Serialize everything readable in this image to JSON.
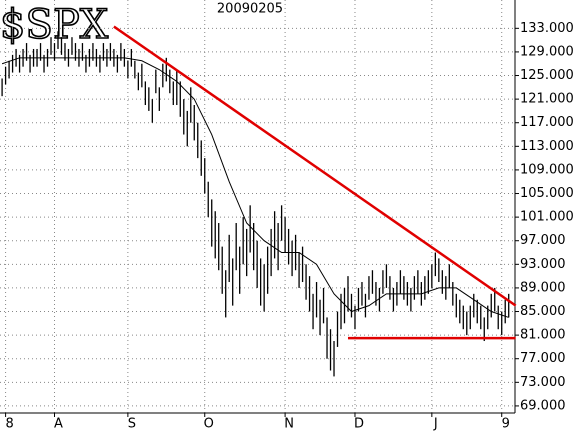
{
  "chart_data": {
    "type": "ohlc",
    "title": "$SPX",
    "subtitle": "20090205",
    "xlim": [
      -0.6,
      146.8
    ],
    "xticks": [
      {
        "value": 1,
        "label": "8"
      },
      {
        "value": 15,
        "label": "A"
      },
      {
        "value": 36,
        "label": "S"
      },
      {
        "value": 58,
        "label": "O"
      },
      {
        "value": 81,
        "label": "N"
      },
      {
        "value": 101,
        "label": "D"
      },
      {
        "value": 123,
        "label": "J"
      },
      {
        "value": 143,
        "label": "9"
      }
    ],
    "ylim": [
      67.8,
      137.8
    ],
    "yticks": [
      {
        "value": 69,
        "label": "69.000"
      },
      {
        "value": 73,
        "label": "73.000"
      },
      {
        "value": 77,
        "label": "77.000"
      },
      {
        "value": 81,
        "label": "81.000"
      },
      {
        "value": 85,
        "label": "85.000"
      },
      {
        "value": 89,
        "label": "89.000"
      },
      {
        "value": 93,
        "label": "93.000"
      },
      {
        "value": 97,
        "label": "97.000"
      },
      {
        "value": 101,
        "label": "101.000"
      },
      {
        "value": 105,
        "label": "105.000"
      },
      {
        "value": 109,
        "label": "109.000"
      },
      {
        "value": 113,
        "label": "113.000"
      },
      {
        "value": 117,
        "label": "117.000"
      },
      {
        "value": 121,
        "label": "121.000"
      },
      {
        "value": 125,
        "label": "125.000"
      },
      {
        "value": 129,
        "label": "129.000"
      },
      {
        "value": 133,
        "label": "133.000"
      }
    ],
    "grid": true,
    "color": "#000000",
    "high": [
      124.5,
      126.5,
      127.5,
      128.5,
      129.5,
      128.5,
      129.5,
      130.5,
      128.5,
      129.5,
      129.5,
      130.5,
      128.5,
      129.5,
      131.5,
      130.5,
      132.5,
      131.5,
      130.5,
      129.5,
      131.5,
      130.5,
      129.5,
      130.5,
      128.5,
      129.5,
      130.5,
      129.5,
      128.5,
      130.5,
      129.5,
      130.5,
      129.5,
      128.5,
      130.5,
      129.5,
      127.5,
      129.5,
      127.5,
      125.5,
      127,
      124,
      123,
      121,
      126,
      123,
      127,
      128,
      126,
      124,
      126,
      124,
      121,
      119,
      123,
      120,
      117,
      114,
      111,
      107,
      104,
      102,
      100,
      96,
      92,
      98,
      94,
      100,
      96,
      101,
      99,
      103,
      100,
      97,
      94,
      93,
      96,
      99,
      102,
      100,
      103,
      101,
      99,
      97,
      98,
      95,
      96,
      93,
      91,
      88,
      90,
      87,
      89,
      84,
      82,
      80,
      85,
      88,
      89,
      91,
      88,
      86,
      89,
      90,
      88,
      91,
      92,
      90,
      89,
      92,
      93,
      91,
      89,
      90,
      92,
      91,
      90,
      89,
      91,
      92,
      90,
      91,
      92,
      93,
      95,
      94,
      92,
      91,
      93,
      90,
      88,
      87,
      86,
      85,
      86,
      88,
      87,
      86,
      84,
      86,
      88,
      89,
      86,
      85,
      87,
      88
    ],
    "low": [
      121.5,
      123.5,
      124.5,
      125.5,
      126.5,
      125.5,
      126.5,
      127.5,
      125.5,
      126.5,
      126.5,
      127.5,
      125.5,
      126.5,
      128.5,
      127.5,
      129.5,
      128.5,
      127.5,
      126.5,
      128.5,
      127.5,
      126.5,
      127.5,
      125.5,
      126.5,
      127.5,
      126.5,
      125.5,
      127.5,
      126.5,
      127.5,
      126.5,
      125.5,
      127.5,
      126.5,
      124.5,
      126.5,
      124.5,
      122.5,
      123,
      120,
      119,
      117,
      122,
      119,
      123,
      124,
      122,
      120,
      120,
      118,
      115,
      113,
      117,
      114,
      111,
      108,
      105,
      101,
      96,
      94,
      92,
      88,
      84,
      90,
      86,
      92,
      88,
      93,
      91,
      95,
      92,
      89,
      86,
      85,
      88,
      91,
      94,
      92,
      97,
      95,
      93,
      91,
      92,
      89,
      90,
      87,
      85,
      82,
      84,
      81,
      83,
      77,
      75,
      74,
      79,
      82,
      83,
      85,
      84,
      82,
      85,
      86,
      84,
      87,
      88,
      86,
      85,
      88,
      89,
      87,
      85,
      86,
      88,
      87,
      86,
      85,
      87,
      88,
      86,
      87,
      88,
      89,
      91,
      90,
      88,
      87,
      89,
      86,
      84,
      83,
      82,
      81,
      82,
      84,
      83,
      82,
      80,
      82,
      84,
      85,
      82,
      81,
      83,
      84
    ],
    "moving_average": {
      "color": "#000000",
      "x": [
        0,
        5,
        10,
        15,
        20,
        25,
        30,
        35,
        40,
        45,
        50,
        55,
        60,
        65,
        70,
        75,
        80,
        85,
        90,
        95,
        100,
        105,
        110,
        115,
        120,
        125,
        130,
        135,
        140,
        145
      ],
      "values": [
        127,
        128,
        128,
        128,
        128,
        128,
        128,
        128,
        127.5,
        126,
        124,
        121,
        115,
        107,
        100,
        97,
        95,
        95,
        93,
        88,
        85,
        86,
        88,
        88,
        88,
        89,
        89,
        87,
        85,
        84
      ]
    },
    "trendlines": [
      {
        "color": "#e00000",
        "x": [
          32,
          147
        ],
        "y": [
          133.3,
          86
        ]
      },
      {
        "color": "#e00000",
        "x": [
          99,
          147
        ],
        "y": [
          80.5,
          80.5
        ]
      }
    ]
  }
}
